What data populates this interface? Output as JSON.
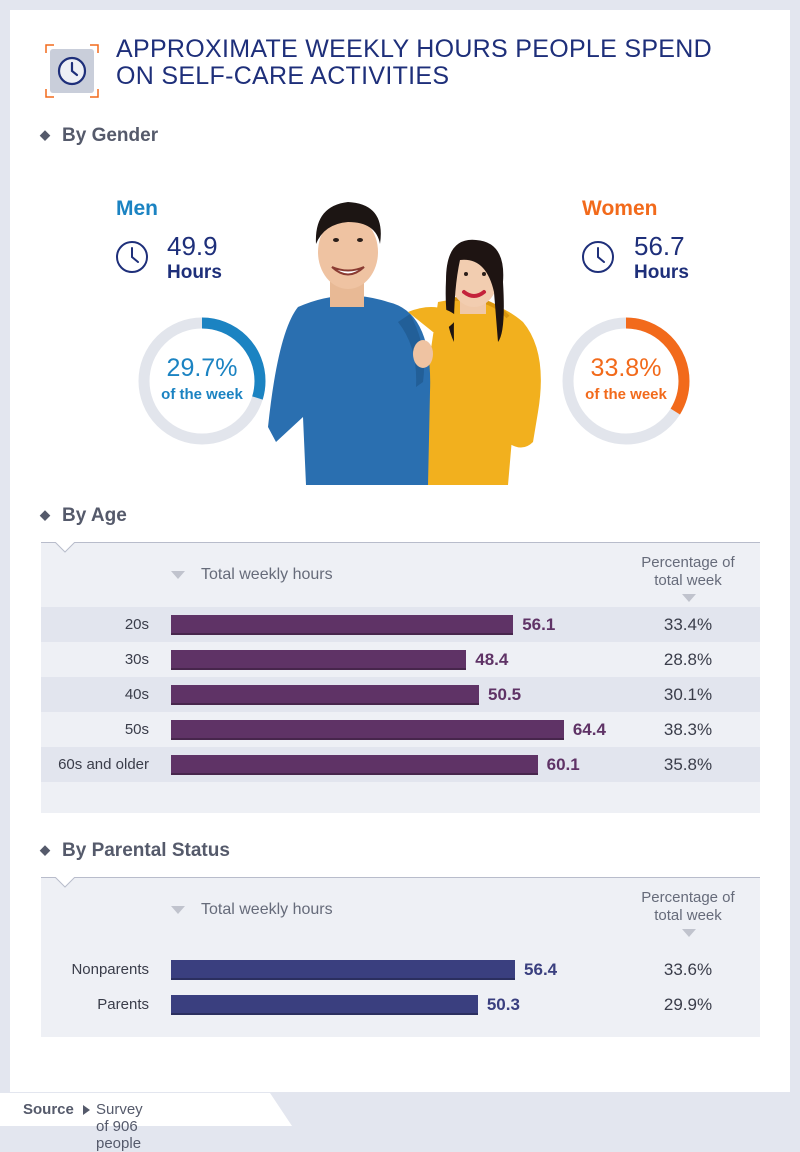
{
  "title": "APPROXIMATE WEEKLY HOURS PEOPLE SPEND ON SELF-CARE ACTIVITIES",
  "colors": {
    "navy": "#1e2f7a",
    "men_blue": "#1b83c2",
    "women_orange": "#f26a1b",
    "age_bar": "#5f3366",
    "parent_bar": "#3a3f7f",
    "ring_gray": "#e2e5ec"
  },
  "gender": {
    "section_title": "By Gender",
    "men": {
      "label": "Men",
      "hours": "49.9",
      "hours_unit": "Hours",
      "pct": "29.7%",
      "pct_sub": "of the week",
      "pct_value": 29.7
    },
    "women": {
      "label": "Women",
      "hours": "56.7",
      "hours_unit": "Hours",
      "pct": "33.8%",
      "pct_sub": "of the week",
      "pct_value": 33.8
    }
  },
  "age": {
    "section_title": "By Age",
    "col_hours": "Total weekly hours",
    "col_pct": "Percentage of total week"
  },
  "parental": {
    "section_title": "By Parental Status",
    "col_hours": "Total weekly hours",
    "col_pct": "Percentage of total week"
  },
  "source": {
    "label": "Source",
    "text": "Survey of 906 people"
  },
  "chart_data": [
    {
      "type": "bar",
      "title": "By Age",
      "xlabel": "Total weekly hours",
      "categories": [
        "20s",
        "30s",
        "40s",
        "50s",
        "60s and older"
      ],
      "values": [
        56.1,
        48.4,
        50.5,
        64.4,
        60.1
      ],
      "value_labels": [
        "56.1",
        "48.4",
        "50.5",
        "64.4",
        "60.1"
      ],
      "percent_of_week": [
        "33.4%",
        "28.8%",
        "30.1%",
        "38.3%",
        "35.8%"
      ]
    },
    {
      "type": "bar",
      "title": "By Parental Status",
      "xlabel": "Total weekly hours",
      "categories": [
        "Nonparents",
        "Parents"
      ],
      "values": [
        56.4,
        50.3
      ],
      "value_labels": [
        "56.4",
        "50.3"
      ],
      "percent_of_week": [
        "33.6%",
        "29.9%"
      ]
    }
  ]
}
